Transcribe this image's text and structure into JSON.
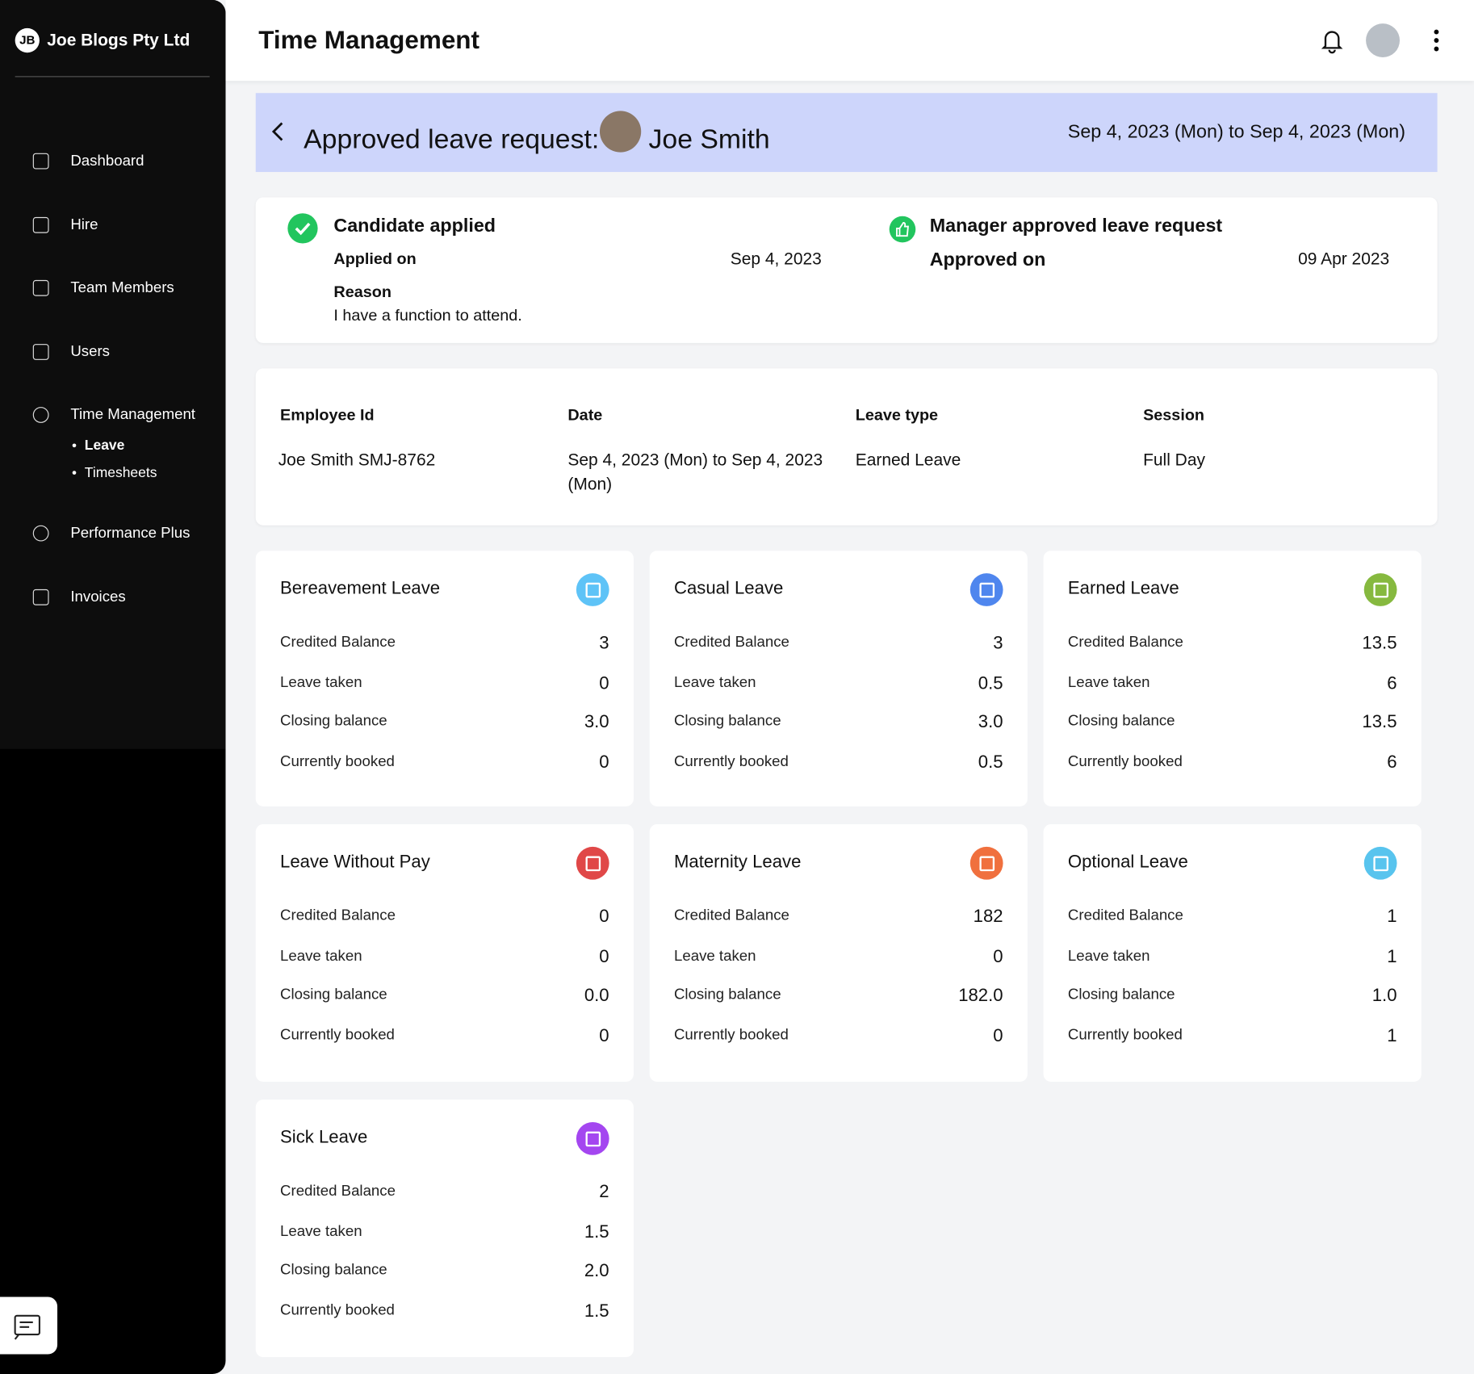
{
  "sidebar": {
    "brand_initials": "JB",
    "brand": "Joe Blogs Pty Ltd",
    "nav": [
      "Dashboard",
      "Hire",
      "Team Members",
      "Users",
      "Time Management",
      "Performance Plus",
      "Invoices"
    ],
    "subnav": [
      "Leave",
      "Timesheets"
    ]
  },
  "header": {
    "title": "Time Management"
  },
  "banner": {
    "title": "Approved leave request:",
    "name": "Joe Smith",
    "range": "Sep 4, 2023 (Mon) to Sep 4, 2023 (Mon)"
  },
  "timeline": {
    "applied": {
      "title": "Candidate applied",
      "label": "Applied on",
      "date": "Sep 4, 2023",
      "reason_label": "Reason",
      "reason": "I have a function to attend."
    },
    "approved": {
      "title": "Manager approved leave request",
      "label": "Approved on",
      "date": "09 Apr 2023"
    }
  },
  "details": {
    "headers": [
      "Employee Id",
      "Date",
      "Leave type",
      "Session"
    ],
    "values": [
      "Joe Smith SMJ-8762",
      "Sep 4, 2023 (Mon) to Sep 4, 2023 (Mon)",
      "Earned Leave",
      "Full Day"
    ]
  },
  "balances": [
    {
      "name": "Bereavement Leave",
      "color": "#5ec3f7",
      "rows": [
        [
          "Credited Balance",
          "3"
        ],
        [
          "Leave taken",
          "0"
        ],
        [
          "Closing balance",
          "3.0"
        ],
        [
          "Currently booked",
          "0"
        ]
      ]
    },
    {
      "name": "Casual Leave",
      "color": "#4f86ee",
      "rows": [
        [
          "Credited Balance",
          "3"
        ],
        [
          "Leave taken",
          "0.5"
        ],
        [
          "Closing balance",
          "3.0"
        ],
        [
          "Currently booked",
          "0.5"
        ]
      ]
    },
    {
      "name": "Earned Leave",
      "color": "#86b93f",
      "rows": [
        [
          "Credited Balance",
          "13.5"
        ],
        [
          "Leave taken",
          "6"
        ],
        [
          "Closing balance",
          "13.5"
        ],
        [
          "Currently booked",
          "6"
        ]
      ]
    },
    {
      "name": "Leave Without Pay",
      "color": "#e04848",
      "rows": [
        [
          "Credited Balance",
          "0"
        ],
        [
          "Leave taken",
          "0"
        ],
        [
          "Closing balance",
          "0.0"
        ],
        [
          "Currently booked",
          "0"
        ]
      ]
    },
    {
      "name": "Maternity Leave",
      "color": "#f0703e",
      "rows": [
        [
          "Credited Balance",
          "182"
        ],
        [
          "Leave taken",
          "0"
        ],
        [
          "Closing balance",
          "182.0"
        ],
        [
          "Currently booked",
          "0"
        ]
      ]
    },
    {
      "name": "Optional Leave",
      "color": "#58c4ee",
      "rows": [
        [
          "Credited Balance",
          "1"
        ],
        [
          "Leave taken",
          "1"
        ],
        [
          "Closing balance",
          "1.0"
        ],
        [
          "Currently booked",
          "1"
        ]
      ]
    },
    {
      "name": "Sick Leave",
      "color": "#a446f0",
      "rows": [
        [
          "Credited Balance",
          "2"
        ],
        [
          "Leave taken",
          "1.5"
        ],
        [
          "Closing balance",
          "2.0"
        ],
        [
          "Currently booked",
          "1.5"
        ]
      ]
    }
  ]
}
